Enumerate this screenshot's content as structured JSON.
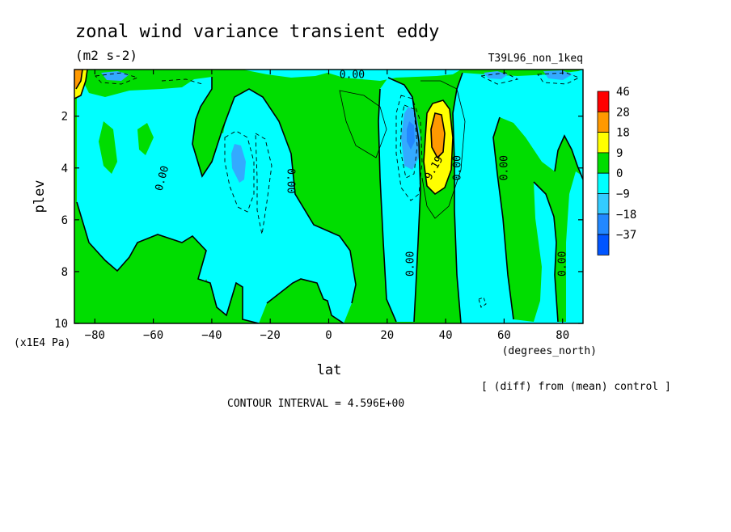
{
  "chart_data": {
    "type": "contour",
    "title": "zonal wind variance transient eddy",
    "units": "(m2 s-2)",
    "experiment": "T39L96_non_1keq",
    "xlabel": "lat",
    "xunits": "(degrees_north)",
    "ylabel": "plev",
    "yunits": "(x1E4 Pa)",
    "x_ticks": [
      -80,
      -60,
      -40,
      -20,
      0,
      20,
      40,
      60,
      80
    ],
    "y_ticks": [
      2,
      4,
      6,
      8,
      10
    ],
    "xlim": [
      -87,
      87
    ],
    "ylim": [
      0.2,
      10
    ],
    "y_inverted": true,
    "note": "[ (diff) from (mean) control ]",
    "contour_interval_text": "CONTOUR INTERVAL = 4.596E+00",
    "legend_levels": [
      "46",
      "28",
      "18",
      "9",
      "0",
      "-9",
      "-18",
      "-37"
    ],
    "legend_colors": [
      "#ff0000",
      "#ff9900",
      "#ffff00",
      "#00dd00",
      "#00ffff",
      "#33ccff",
      "#2288ff",
      "#0055ff"
    ],
    "contour_labels": [
      {
        "text": "0.00",
        "lat": -57,
        "plev": 4.4,
        "angle": -75
      },
      {
        "text": "0.00",
        "lat": -13,
        "plev": 4.5,
        "angle": 90
      },
      {
        "text": "0.00",
        "lat": 8,
        "plev": 0.4,
        "angle": 0
      },
      {
        "text": "0.00",
        "lat": 28,
        "plev": 7.7,
        "angle": -90
      },
      {
        "text": "9.19",
        "lat": 36,
        "plev": 4.0,
        "angle": -60
      },
      {
        "text": "0.00",
        "lat": 44,
        "plev": 4.0,
        "angle": -90
      },
      {
        "text": "0.00",
        "lat": 60,
        "plev": 4.0,
        "angle": -90
      },
      {
        "text": "0.00",
        "lat": 80,
        "plev": 7.7,
        "angle": -90
      }
    ],
    "features": [
      {
        "kind": "max",
        "lat": 37,
        "plev": 2.8,
        "level": "18 to 28"
      },
      {
        "kind": "max",
        "lat": -86,
        "plev": 0.8,
        "level": "18 to 28"
      },
      {
        "kind": "min",
        "lat": 28,
        "plev": 2.6,
        "level": "-18 to -37"
      },
      {
        "kind": "min",
        "lat": -31,
        "plev": 3.6,
        "level": "-18 to -9"
      }
    ]
  }
}
